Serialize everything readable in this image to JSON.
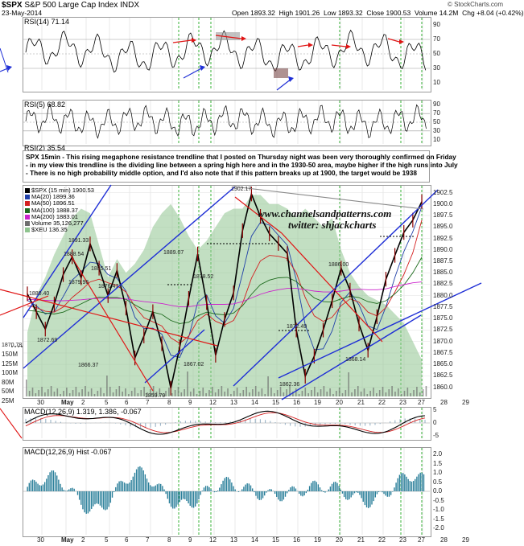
{
  "header": {
    "symbol": "$SPX",
    "name": "S&P 500 Large Cap Index",
    "exchange": "INDX",
    "brand": "© StockCharts.com",
    "date": "23-May-2014",
    "open_label": "Open",
    "open": "1893.32",
    "high_label": "High",
    "high": "1901.26",
    "low_label": "Low",
    "low": "1893.32",
    "close_label": "Close",
    "close": "1900.53",
    "volume_label": "Volume",
    "volume": "14.2M",
    "chg_label": "Chg",
    "chg": "+8.04 (+0.42%)"
  },
  "panels": {
    "rsi14_label": "RSI(14) 71.14",
    "rsi5_label": "RSI(5) 68.82",
    "rsi2_label": "RSI(2) 35.54",
    "macd_label": "MACD(12,26,9) 1.319, 1.386, -0.067",
    "hist_label": "MACD(12,26,9) Hist -0.067"
  },
  "annotation": {
    "line1": "SPX 15min - This rising megaphone resistance trendline that I posted on Thursday night was been very thoroughly confirmed on Friday",
    "line2": "- in my view this trendline is the dividing line between a spring high here and in the 1930-50 area, maybe higher if the high runs into July",
    "line3": "- There is no high probability middle option, and I'd also note that if this pattern breaks up at 1900, the target would be 1938"
  },
  "legend": [
    {
      "label": "$SPX (15 min) 1900.53",
      "color": "#000000"
    },
    {
      "label": "MA(20) 1899.36",
      "color": "#1f3fa8"
    },
    {
      "label": "MA(50) 1896.51",
      "color": "#d42020"
    },
    {
      "label": "MA(100) 1888.37",
      "color": "#1e6b1e"
    },
    {
      "label": "MA(200) 1883.01",
      "color": "#cc22cc"
    },
    {
      "label": "Volume 35,126,277",
      "color": "#6e6e6e"
    },
    {
      "label": "$XEU 136.35",
      "color": "#8fc48f"
    }
  ],
  "watermark": {
    "line1": "www.channelsandpatterns.com",
    "line2": "twitter: shjackcharts"
  },
  "colors": {
    "price": "#000000",
    "trendline": "#1f2fd6",
    "redline": "#e01414",
    "ma20": "#1f3fa8",
    "ma50": "#d42020",
    "ma100": "#1e6b1e",
    "ma200": "#cc22cc",
    "xeu": "#8fc48f",
    "volume": "#6e6e6e",
    "macd": "#000000",
    "signal": "#d42020",
    "hist": "#2a7f9a",
    "vline": "#22aa22"
  },
  "chart_data": {
    "type": "line",
    "x_labels": [
      "30",
      "May",
      "2",
      "5",
      "6",
      "7",
      "8",
      "9",
      "12",
      "13",
      "14",
      "15",
      "16",
      "19",
      "20",
      "21",
      "22",
      "23",
      "27",
      "28",
      "29"
    ],
    "price_axis_ticks": [
      "1902.5",
      "1900.0",
      "1897.5",
      "1895.0",
      "1892.5",
      "1890.0",
      "1887.5",
      "1885.0",
      "1882.5",
      "1880.0",
      "1877.5",
      "1875.0",
      "1872.5",
      "1870.0",
      "1867.5",
      "1865.0",
      "1862.5",
      "1860.0"
    ],
    "ylim": [
      1858,
      1904
    ],
    "volume_axis_ticks": [
      "150M",
      "125M",
      "100M",
      "80M",
      "50M",
      "25M"
    ],
    "rsi_axis_ticks": [
      "90",
      "70",
      "50",
      "30",
      "10"
    ],
    "macd_axis_ticks": [
      "5",
      "0",
      "-5"
    ],
    "hist_axis_ticks": [
      "2.0",
      "1.5",
      "1.0",
      "0.5",
      "0.0",
      "-0.5",
      "-1.0",
      "-1.5",
      "-2.0"
    ],
    "price_labels": [
      {
        "value": 1880.4,
        "text": "1880.40"
      },
      {
        "value": 1872.69,
        "text": "1872.69"
      },
      {
        "value": 1888.54,
        "text": "1888.54"
      },
      {
        "value": 1891.33,
        "text": "1891.33"
      },
      {
        "value": 1879.96,
        "text": "1879.96"
      },
      {
        "value": 1885.51,
        "text": "1885.51"
      },
      {
        "value": 1866.37,
        "text": "1866.37"
      },
      {
        "value": 1876.47,
        "text": "1876.47"
      },
      {
        "value": 1859.79,
        "text": "1859.79"
      },
      {
        "value": 1889.07,
        "text": "1889.07"
      },
      {
        "value": 1878.52,
        "text": "1878.52"
      },
      {
        "value": 1867.02,
        "text": "1867.02"
      },
      {
        "value": 1902.17,
        "text": "1902.17"
      },
      {
        "value": 1872.49,
        "text": "1872.49"
      },
      {
        "value": 1862.36,
        "text": "1862.36"
      },
      {
        "value": 1886.0,
        "text": "1886.00"
      },
      {
        "value": 1868.14,
        "text": "1868.14"
      },
      {
        "value": 1870.78,
        "text": "1870.78"
      }
    ],
    "series": [
      {
        "name": "$SPX (15 min)",
        "values": [
          1880.4,
          1876.5,
          1872.7,
          1878.2,
          1884.6,
          1888.5,
          1883.9,
          1891.3,
          1886.0,
          1880.0,
          1885.5,
          1877.3,
          1866.4,
          1871.2,
          1876.5,
          1869.5,
          1859.8,
          1868.8,
          1879.4,
          1889.1,
          1878.5,
          1867.0,
          1874.8,
          1880.6,
          1894.2,
          1902.2,
          1897.3,
          1893.5,
          1891.4,
          1889.2,
          1872.5,
          1862.4,
          1866.8,
          1872.5,
          1878.9,
          1886.0,
          1881.2,
          1873.8,
          1868.1,
          1875.4,
          1883.6,
          1888.8,
          1893.8,
          1896.5,
          1900.5
        ]
      },
      {
        "name": "MA(20)",
        "values": [
          1879.0,
          1877.8,
          1876.0,
          1876.5,
          1879.8,
          1883.4,
          1885.2,
          1887.3,
          1887.0,
          1884.6,
          1883.8,
          1881.0,
          1875.3,
          1872.8,
          1872.9,
          1871.6,
          1867.0,
          1866.5,
          1871.0,
          1878.5,
          1880.2,
          1875.6,
          1874.0,
          1877.2,
          1884.8,
          1893.0,
          1896.0,
          1895.4,
          1893.2,
          1891.0,
          1883.5,
          1873.6,
          1868.2,
          1868.4,
          1872.3,
          1878.6,
          1880.8,
          1878.0,
          1873.4,
          1872.6,
          1877.6,
          1884.0,
          1889.6,
          1894.0,
          1899.4
        ]
      },
      {
        "name": "MA(50)",
        "values": [
          1877.8,
          1877.4,
          1876.6,
          1876.4,
          1877.5,
          1879.6,
          1881.2,
          1883.0,
          1883.6,
          1882.8,
          1882.2,
          1880.8,
          1877.6,
          1875.2,
          1874.3,
          1873.4,
          1870.8,
          1869.6,
          1871.2,
          1874.6,
          1876.0,
          1874.4,
          1873.6,
          1874.6,
          1878.3,
          1883.8,
          1887.6,
          1888.8,
          1888.6,
          1888.1,
          1885.0,
          1879.6,
          1875.6,
          1874.4,
          1875.3,
          1877.8,
          1879.3,
          1878.6,
          1876.4,
          1875.6,
          1877.4,
          1880.8,
          1884.6,
          1889.4,
          1896.5
        ]
      },
      {
        "name": "MA(100)",
        "values": [
          1876.8,
          1876.6,
          1876.2,
          1876.0,
          1876.4,
          1877.3,
          1878.2,
          1879.2,
          1879.7,
          1879.6,
          1879.6,
          1879.2,
          1878.0,
          1876.9,
          1876.4,
          1875.9,
          1874.6,
          1873.9,
          1874.2,
          1875.6,
          1876.4,
          1876.0,
          1875.8,
          1876.2,
          1877.8,
          1880.3,
          1882.4,
          1883.4,
          1883.9,
          1884.0,
          1883.1,
          1881.2,
          1879.5,
          1878.7,
          1878.6,
          1879.3,
          1879.9,
          1879.6,
          1878.7,
          1878.3,
          1878.9,
          1880.4,
          1882.3,
          1885.0,
          1888.4
        ]
      },
      {
        "name": "MA(200)",
        "values": [
          1879.2,
          1879.1,
          1879.0,
          1878.9,
          1878.9,
          1879.0,
          1879.1,
          1879.3,
          1879.4,
          1879.4,
          1879.4,
          1879.3,
          1879.0,
          1878.7,
          1878.5,
          1878.3,
          1877.9,
          1877.6,
          1877.6,
          1877.9,
          1878.1,
          1878.1,
          1878.1,
          1878.2,
          1878.7,
          1879.5,
          1880.3,
          1880.9,
          1881.3,
          1881.6,
          1881.6,
          1881.3,
          1881.0,
          1880.8,
          1880.8,
          1881.0,
          1881.3,
          1881.4,
          1881.3,
          1881.3,
          1881.5,
          1882.0,
          1882.4,
          1882.8,
          1883.0
        ]
      }
    ]
  }
}
